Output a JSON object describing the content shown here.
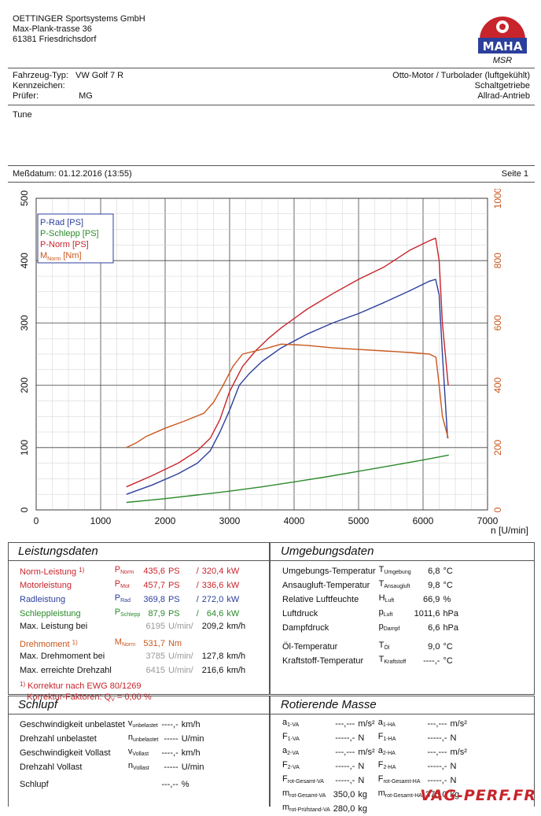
{
  "company": {
    "name": "OETTINGER Sportsystems GmbH",
    "street": "Max-Plank-trasse 36",
    "city": "61381 Friesdrichsdorf",
    "logo_top": "MAHA",
    "logo_sub": "MSR"
  },
  "vehicle": {
    "type_label": "Fahrzeug-Typ:",
    "type_value": "VW Golf 7 R",
    "plate_label": "Kennzeichen:",
    "tester_label": "Prüfer:",
    "tester_value": "MG",
    "engine": "Otto-Motor / Turbolader (luftgekühlt)",
    "gearbox": "Schaltgetriebe",
    "drive": "Allrad-Antrieb"
  },
  "notes": "Tune",
  "measure": {
    "date": "Meßdatum: 01.12.2016 (13:55)",
    "page": "Seite 1"
  },
  "chart_data": {
    "type": "line",
    "xlabel": "n [U/min]",
    "xlim": [
      0,
      7000
    ],
    "ylim_left": [
      0,
      500
    ],
    "ylim_right": [
      0,
      1000
    ],
    "x_ticks": [
      "0",
      "1000",
      "2000",
      "3000",
      "4000",
      "5000",
      "6000",
      "7000"
    ],
    "y_ticks_left": [
      "0",
      "100",
      "200",
      "300",
      "400",
      "500"
    ],
    "y_ticks_right": [
      "0",
      "200",
      "400",
      "600",
      "800",
      "1000"
    ],
    "grid": true,
    "legend_position": "top-left",
    "series": [
      {
        "name": "P-Rad [PS]",
        "axis": "left",
        "color": "#2c3f9c",
        "x": [
          1400,
          1800,
          2200,
          2500,
          2700,
          2850,
          3000,
          3150,
          3300,
          3500,
          3800,
          4200,
          4600,
          5000,
          5400,
          5800,
          6100,
          6195,
          6250,
          6300,
          6380
        ],
        "y": [
          25,
          40,
          58,
          75,
          95,
          125,
          160,
          200,
          218,
          238,
          260,
          282,
          300,
          315,
          333,
          352,
          367,
          370,
          345,
          250,
          115
        ]
      },
      {
        "name": "P-Schlepp [PS]",
        "axis": "left",
        "color": "#2b8a2b",
        "x": [
          1400,
          2000,
          2500,
          3000,
          3500,
          4000,
          4500,
          5000,
          5500,
          6000,
          6400
        ],
        "y": [
          12,
          18,
          24,
          30,
          37,
          45,
          53,
          62,
          71,
          80,
          88
        ]
      },
      {
        "name": "P-Norm [PS]",
        "axis": "left",
        "color": "#c8242b",
        "x": [
          1400,
          1800,
          2200,
          2500,
          2700,
          2850,
          3000,
          3200,
          3400,
          3600,
          3800,
          4200,
          4600,
          5000,
          5400,
          5800,
          6100,
          6195,
          6250,
          6300,
          6390
        ],
        "y": [
          37,
          55,
          75,
          95,
          115,
          145,
          190,
          230,
          255,
          275,
          292,
          322,
          347,
          370,
          390,
          417,
          432,
          436,
          400,
          300,
          200
        ]
      },
      {
        "name": "M_Norm [Nm]",
        "axis": "right",
        "color": "#c9571e",
        "x": [
          1400,
          1550,
          1700,
          2000,
          2300,
          2600,
          2750,
          2900,
          3050,
          3200,
          3400,
          3600,
          3800,
          4200,
          4600,
          5000,
          5400,
          5800,
          6100,
          6200,
          6250,
          6300,
          6390
        ],
        "y": [
          200,
          215,
          235,
          262,
          285,
          310,
          345,
          400,
          460,
          500,
          510,
          520,
          532,
          528,
          520,
          515,
          510,
          505,
          500,
          490,
          400,
          300,
          230
        ]
      }
    ]
  },
  "leistung": {
    "title": "Leistungsdaten",
    "rows": [
      {
        "label": "Norm-Leistung",
        "fn": "1)",
        "sym": "P",
        "sub": "Norm",
        "v1": "435,6",
        "u1": "PS",
        "sep": "/",
        "v2": "320,4",
        "u2": "kW"
      },
      {
        "label": "Motorleistung",
        "fn": "",
        "sym": "P",
        "sub": "Mot",
        "v1": "457,7",
        "u1": "PS",
        "sep": "/",
        "v2": "336,6",
        "u2": "kW"
      },
      {
        "label": "Radleistung",
        "fn": "",
        "sym": "P",
        "sub": "Rad",
        "v1": "369,8",
        "u1": "PS",
        "sep": "/",
        "v2": "272,0",
        "u2": "kW"
      },
      {
        "label": "Schleppleistung",
        "fn": "",
        "sym": "P",
        "sub": "Schlepp",
        "v1": "87,9",
        "u1": "PS",
        "sep": "/",
        "v2": "64,6",
        "u2": "kW"
      }
    ],
    "max_power": {
      "label": "Max. Leistung bei",
      "rpm": "6195",
      "unit": "U/min/",
      "speed": "209,2",
      "speed_unit": "km/h"
    },
    "torque": {
      "label": "Drehmoment",
      "fn": "1)",
      "sym": "M",
      "sub": "Norm",
      "value": "531,7",
      "unit": "Nm"
    },
    "max_torque": {
      "label": "Max. Drehmoment bei",
      "rpm": "3785",
      "unit": "U/min/",
      "speed": "127,8",
      "speed_unit": "km/h"
    },
    "max_rpm": {
      "label": "Max. erreichte Drehzahl",
      "rpm": "6415",
      "unit": "U/min/",
      "speed": "216,6",
      "speed_unit": "km/h"
    },
    "correction_fn": "1)",
    "correction": "Korrektur nach EWG 80/1269",
    "factor_label": "Korrektur-Faktoren: Q",
    "factor_sub": "V",
    "factor_value": "=   0,00 %"
  },
  "umgebung": {
    "title": "Umgebungsdaten",
    "rows": [
      {
        "label": "Umgebungs-Temperatur",
        "sym": "T",
        "sub": "Umgebung",
        "value": "6,8",
        "unit": "°C"
      },
      {
        "label": "Ansaugluft-Temperatur",
        "sym": "T",
        "sub": "Ansaugluft",
        "value": "9,8",
        "unit": "°C"
      },
      {
        "label": "Relative Luftfeuchte",
        "sym": "H",
        "sub": "Luft",
        "value": "66,9",
        "unit": "%"
      },
      {
        "label": "Luftdruck",
        "sym": "p",
        "sub": "Luft",
        "value": "1011,6",
        "unit": "hPa"
      },
      {
        "label": "Dampfdruck",
        "sym": "p",
        "sub": "Dampf",
        "value": "6,6",
        "unit": "hPa"
      }
    ],
    "rows2": [
      {
        "label": "Öl-Temperatur",
        "sym": "T",
        "sub": "Öl",
        "value": "9,0",
        "unit": "°C"
      },
      {
        "label": "Kraftstoff-Temperatur",
        "sym": "T",
        "sub": "Kraftstoff",
        "value": "----,-",
        "unit": "°C"
      }
    ]
  },
  "schlupf": {
    "title": "Schlupf",
    "rows": [
      {
        "label": "Geschwindigkeit unbelastet",
        "sym": "v",
        "sub": "unbelastet",
        "value": "----,-",
        "unit": "km/h"
      },
      {
        "label": "Drehzahl unbelastet",
        "sym": "n",
        "sub": "unbelastet",
        "value": "-----",
        "unit": "U/min"
      },
      {
        "label": "Geschwindigkeit Vollast",
        "sym": "v",
        "sub": "Vollast",
        "value": "----,-",
        "unit": "km/h"
      },
      {
        "label": "Drehzahl Vollast",
        "sym": "n",
        "sub": "Vollast",
        "value": "-----",
        "unit": "U/min"
      }
    ],
    "slip": {
      "label": "Schlupf",
      "value": "---,--",
      "unit": "%"
    }
  },
  "rotierende": {
    "title": "Rotierende Masse",
    "rows": [
      {
        "s1": "a",
        "b1": "1-VA",
        "v1": "---,---",
        "u1": "m/s²",
        "s2": "a",
        "b2": "1-HA",
        "v2": "---,---",
        "u2": "m/s²"
      },
      {
        "s1": "F",
        "b1": "1-VA",
        "v1": "-----,-",
        "u1": "N",
        "s2": "F",
        "b2": "1-HA",
        "v2": "-----,-",
        "u2": "N"
      },
      {
        "s1": "a",
        "b1": "2-VA",
        "v1": "---,---",
        "u1": "m/s²",
        "s2": "a",
        "b2": "2-HA",
        "v2": "---,---",
        "u2": "m/s²"
      },
      {
        "s1": "F",
        "b1": "2-VA",
        "v1": "-----,-",
        "u1": "N",
        "s2": "F",
        "b2": "2-HA",
        "v2": "-----,-",
        "u2": "N"
      },
      {
        "s1": "F",
        "b1": "rot-Gesamt-VA",
        "v1": "-----,-",
        "u1": "N",
        "s2": "F",
        "b2": "rot-Gesamt-HA",
        "v2": "-----,-",
        "u2": "N"
      },
      {
        "s1": "m",
        "b1": "rot-Gesamt-VA",
        "v1": "350,0",
        "u1": "kg",
        "s2": "m",
        "b2": "rot-Gesamt-HA",
        "v2": "375,0",
        "u2": "kg"
      },
      {
        "s1": "m",
        "b1": "rot-Prüfstand-VA",
        "v1": "280,0",
        "u1": "kg",
        "s2": "",
        "b2": "",
        "v2": "",
        "u2": ""
      }
    ]
  },
  "watermark": "VAG-PERF.FR"
}
